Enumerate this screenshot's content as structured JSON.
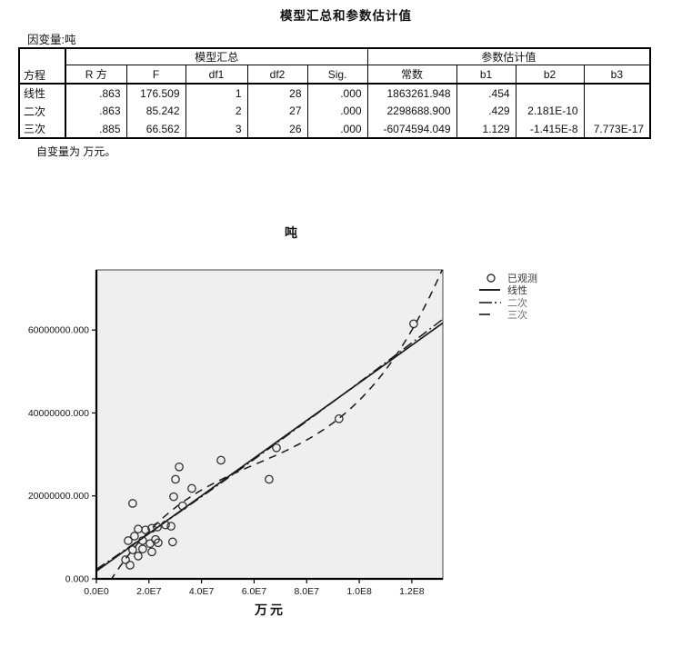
{
  "page": {
    "title": "模型汇总和参数估计值",
    "dependent_note": "因变量:吨",
    "footnote": "自变量为 万元。"
  },
  "table": {
    "corner_header": "方程",
    "span_headers": [
      "模型汇总",
      "参数估计值"
    ],
    "sub_headers": [
      "R 方",
      "F",
      "df1",
      "df2",
      "Sig.",
      "常数",
      "b1",
      "b2",
      "b3"
    ],
    "rows": [
      {
        "equation": "线性",
        "cells": [
          ".863",
          "176.509",
          "1",
          "28",
          ".000",
          "1863261.948",
          ".454",
          "",
          ""
        ]
      },
      {
        "equation": "二次",
        "cells": [
          ".863",
          "85.242",
          "2",
          "27",
          ".000",
          "2298688.900",
          ".429",
          "2.181E-10",
          ""
        ]
      },
      {
        "equation": "三次",
        "cells": [
          ".885",
          "66.562",
          "3",
          "26",
          ".000",
          "-6074594.049",
          "1.129",
          "-1.415E-8",
          "7.773E-17"
        ]
      }
    ]
  },
  "chart_data": {
    "type": "scatter",
    "title": "吨",
    "xlabel": "万元",
    "ylabel": "",
    "plot_bg": "#efefef",
    "line_color": "#1a1a1a",
    "point_color": "#2b2b2b",
    "xlim": [
      0,
      131800000
    ],
    "ylim": [
      0,
      74500000
    ],
    "x_ticks": {
      "values": [
        0,
        20000000,
        40000000,
        60000000,
        80000000,
        100000000,
        120000000
      ],
      "labels": [
        "0.0E0",
        "2.0E7",
        "4.0E7",
        "6.0E7",
        "8.0E7",
        "1.0E8",
        "1.2E8"
      ]
    },
    "y_ticks": {
      "values": [
        0,
        20000000,
        40000000,
        60000000
      ],
      "labels": [
        "0.000",
        "20000000.000",
        "40000000.000",
        "60000000.000"
      ]
    },
    "points": [
      [
        120700000,
        61500000
      ],
      [
        92300000,
        38600000
      ],
      [
        68500000,
        31600000
      ],
      [
        65700000,
        24000000
      ],
      [
        47400000,
        28600000
      ],
      [
        36300000,
        21800000
      ],
      [
        31500000,
        27000000
      ],
      [
        30100000,
        24000000
      ],
      [
        29400000,
        19800000
      ],
      [
        32800000,
        17600000
      ],
      [
        13800000,
        18200000
      ],
      [
        15900000,
        12000000
      ],
      [
        18700000,
        11800000
      ],
      [
        21100000,
        12200000
      ],
      [
        23200000,
        12500000
      ],
      [
        26300000,
        13000000
      ],
      [
        28400000,
        12700000
      ],
      [
        14500000,
        10300000
      ],
      [
        12100000,
        9200000
      ],
      [
        17600000,
        9200000
      ],
      [
        20400000,
        8500000
      ],
      [
        22500000,
        9500000
      ],
      [
        23500000,
        8700000
      ],
      [
        29000000,
        8900000
      ],
      [
        13800000,
        7000000
      ],
      [
        17600000,
        7200000
      ],
      [
        21100000,
        6500000
      ],
      [
        15900000,
        5500000
      ],
      [
        11100000,
        4600000
      ],
      [
        12800000,
        3300000
      ]
    ],
    "fits": [
      {
        "name": "线性",
        "style": "solid",
        "coeffs": [
          1863261.948,
          0.454
        ]
      },
      {
        "name": "二次",
        "style": "dashdot",
        "coeffs": [
          2298688.9,
          0.429,
          2.181e-10
        ]
      },
      {
        "name": "三次",
        "style": "dash",
        "coeffs": [
          -6074594.049,
          1.129,
          -1.415e-08,
          7.773e-17
        ]
      }
    ],
    "legend": {
      "position": "top-right-outside",
      "items": [
        {
          "label": "已观测",
          "marker": "circle"
        },
        {
          "label": "线性",
          "marker": "solid"
        },
        {
          "label": "二次",
          "marker": "dashdot"
        },
        {
          "label": "三次",
          "marker": "dash"
        }
      ]
    }
  }
}
